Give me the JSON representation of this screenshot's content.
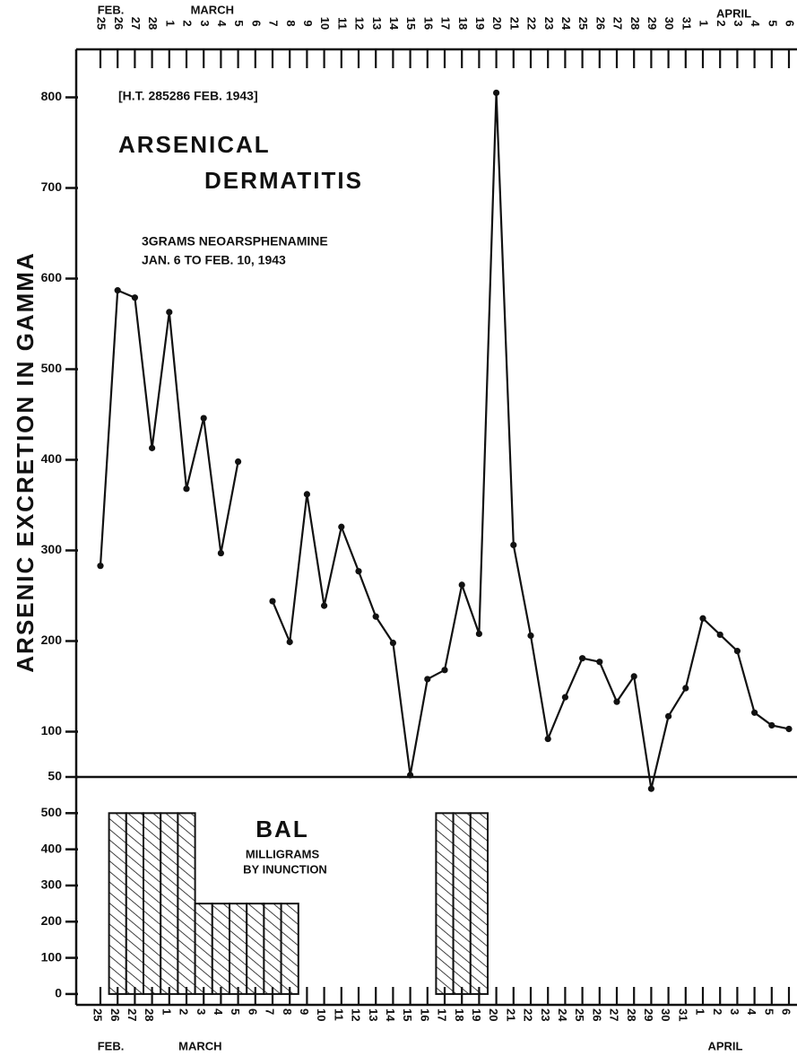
{
  "chart_data": [
    {
      "type": "line",
      "title": "ARSENICAL",
      "subtitle": "DERMATITIS",
      "annotations": [
        "[H.T. 285286 FEB. 1943]",
        "3GRAMS NEOARSPHENAMINE",
        "JAN. 6  TO FEB. 10, 1943"
      ],
      "y_label": "ARSENIC EXCRETION IN GAMMA",
      "months": [
        "FEB.",
        "MARCH",
        "APRIL"
      ],
      "categories": [
        "25",
        "26",
        "27",
        "28",
        "1",
        "2",
        "3",
        "4",
        "5",
        "6",
        "7",
        "8",
        "9",
        "10",
        "11",
        "12",
        "13",
        "14",
        "15",
        "16",
        "17",
        "18",
        "19",
        "20",
        "21",
        "22",
        "23",
        "24",
        "25",
        "26",
        "27",
        "28",
        "29",
        "30",
        "31",
        "1",
        "2",
        "3",
        "4",
        "5",
        "6"
      ],
      "values": [
        283,
        587,
        579,
        413,
        563,
        368,
        446,
        297,
        398,
        null,
        244,
        199,
        362,
        239,
        326,
        277,
        227,
        198,
        52,
        158,
        168,
        262,
        208,
        805,
        306,
        206,
        92,
        138,
        181,
        177,
        133,
        161,
        37,
        117,
        148,
        225,
        207,
        189,
        121,
        107,
        103
      ],
      "color": "#111111",
      "ylim": [
        50,
        850
      ],
      "yticks": [
        50,
        100,
        200,
        300,
        400,
        500,
        600,
        700,
        800
      ]
    },
    {
      "type": "bar",
      "title": "BAL",
      "annotations": [
        "MILLIGRAMS",
        "BY INUNCTION"
      ],
      "months": [
        "FEB.",
        "MARCH",
        "APRIL"
      ],
      "categories": [
        "25",
        "26",
        "27",
        "28",
        "1",
        "2",
        "3",
        "4",
        "5",
        "6",
        "7",
        "8",
        "9",
        "10",
        "11",
        "12",
        "13",
        "14",
        "15",
        "16",
        "17",
        "18",
        "19",
        "20",
        "21",
        "22",
        "23",
        "24",
        "25",
        "26",
        "27",
        "28",
        "29",
        "30",
        "31",
        "1",
        "2",
        "3",
        "4",
        "5",
        "6"
      ],
      "values": [
        null,
        500,
        500,
        500,
        500,
        500,
        250,
        250,
        250,
        250,
        250,
        250,
        null,
        null,
        null,
        null,
        null,
        null,
        null,
        null,
        500,
        500,
        500,
        null,
        null,
        null,
        null,
        null,
        null,
        null,
        null,
        null,
        null,
        null,
        null,
        null,
        null,
        null,
        null,
        null,
        null
      ],
      "color": "#111111",
      "ylim": [
        -30,
        600
      ],
      "yticks": [
        0,
        100,
        200,
        300,
        400,
        500
      ]
    }
  ]
}
